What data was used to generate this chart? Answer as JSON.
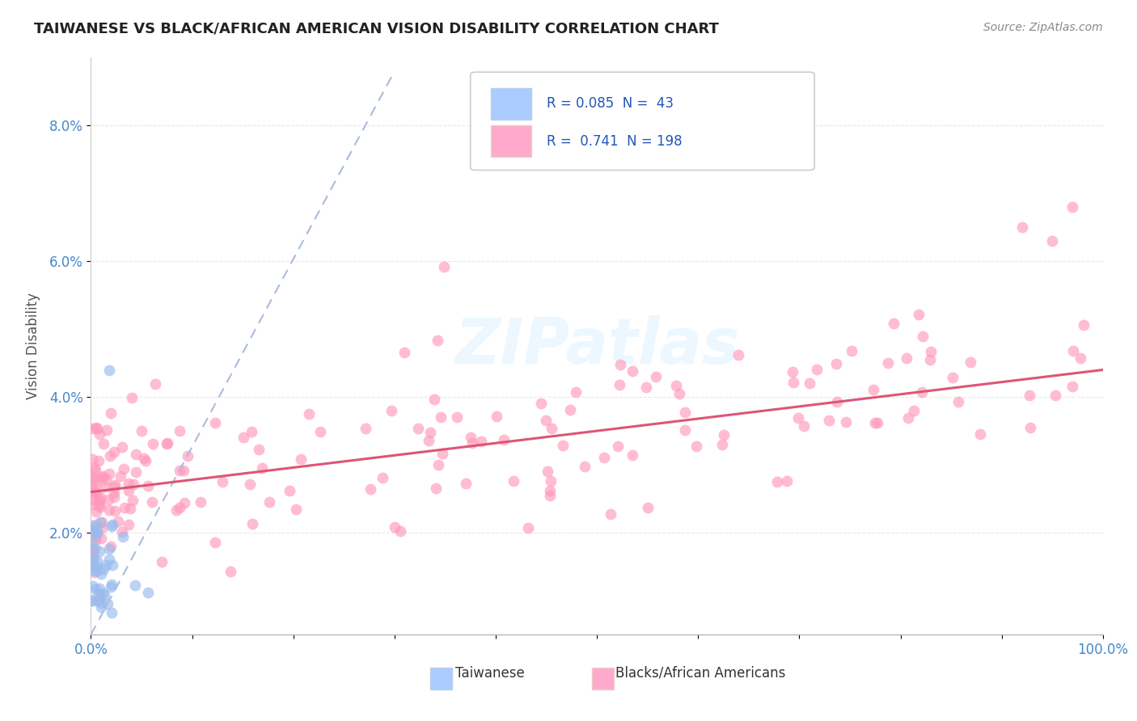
{
  "title": "TAIWANESE VS BLACK/AFRICAN AMERICAN VISION DISABILITY CORRELATION CHART",
  "source": "Source: ZipAtlas.com",
  "ylabel": "Vision Disability",
  "background_color": "#ffffff",
  "grid_color": "#e8e8e8",
  "title_color": "#222222",
  "axis_label_color": "#4488cc",
  "watermark": "ZIPatlas",
  "xlim": [
    0.0,
    1.0
  ],
  "ylim": [
    0.005,
    0.09
  ],
  "yticks": [
    0.02,
    0.04,
    0.06,
    0.08
  ],
  "ytick_labels": [
    "2.0%",
    "4.0%",
    "6.0%",
    "8.0%"
  ],
  "xtick_labels": [
    "0.0%",
    "",
    "",
    "",
    "",
    "",
    "",
    "",
    "",
    "",
    "100.0%"
  ],
  "legend": {
    "taiwanese_R": "0.085",
    "taiwanese_N": "43",
    "black_R": "0.741",
    "black_N": "198",
    "color_taiwanese": "#aaccff",
    "color_black": "#ffaacc"
  },
  "taiwanese_color": "#99bbee",
  "black_color": "#ff99bb",
  "tw_trend_x": [
    0.0,
    0.3
  ],
  "tw_trend_y": [
    0.005,
    0.088
  ],
  "bl_trend_x": [
    0.0,
    1.0
  ],
  "bl_trend_y": [
    0.026,
    0.044
  ]
}
